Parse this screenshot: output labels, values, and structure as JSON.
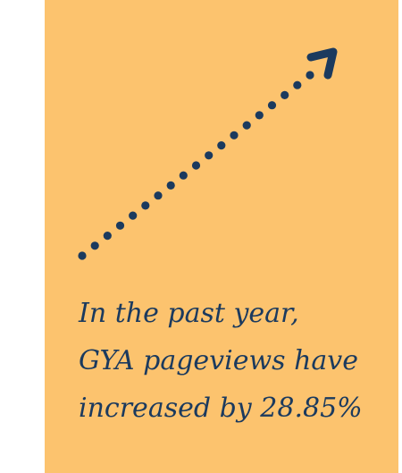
{
  "graphic": {
    "icon": "dotted-arrow-up-right-icon",
    "arrow_color": "#1b3a5e",
    "background_color": "#fcc36e"
  },
  "caption": {
    "line1": "In the past year,",
    "line2": "GYA pageviews have",
    "line3": "increased by 28.85%"
  }
}
